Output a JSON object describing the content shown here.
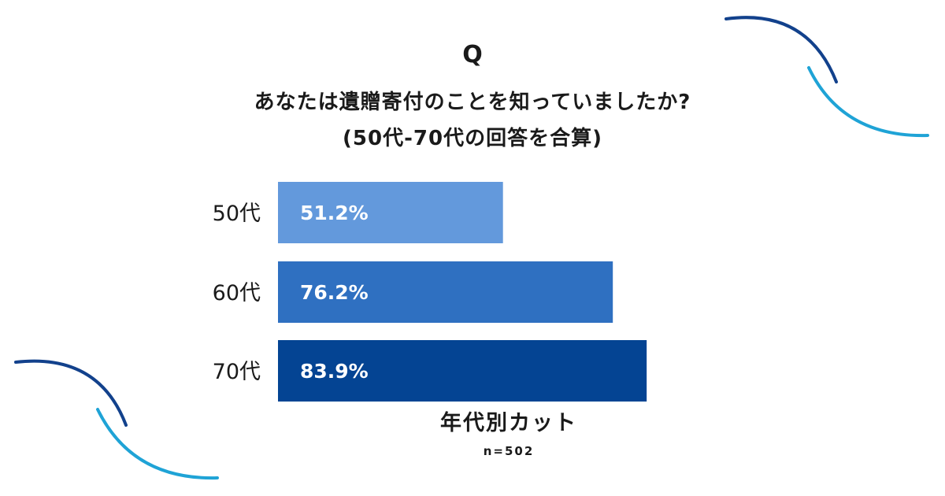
{
  "header": {
    "q_mark": "Q",
    "question": "あなたは遺贈寄付のことを知っていましたか?",
    "subtitle": "(50代-70代の回答を合算)"
  },
  "chart_data": {
    "type": "bar",
    "orientation": "horizontal",
    "categories": [
      "50代",
      "60代",
      "70代"
    ],
    "values": [
      51.2,
      76.2,
      83.9
    ],
    "value_labels": [
      "51.2%",
      "76.2%",
      "83.9%"
    ],
    "xlabel": "年代別カット",
    "note": "n=502",
    "xlim": [
      0,
      100
    ],
    "grid": false,
    "colors": [
      "#6399dc",
      "#2f70c1",
      "#044493"
    ]
  },
  "decor": {
    "arc_dark_color": "#12418c",
    "arc_light_color": "#1fa3d6"
  }
}
